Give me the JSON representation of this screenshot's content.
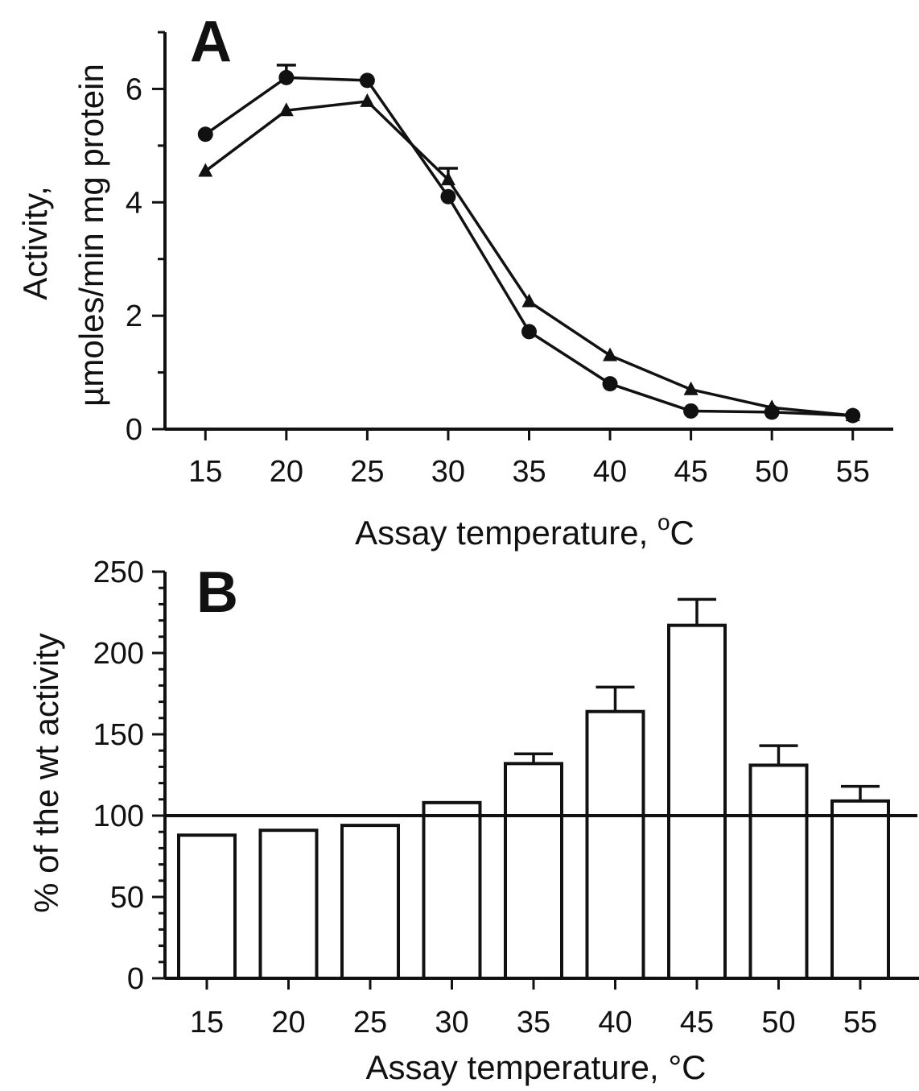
{
  "chart_data": [
    {
      "type": "line",
      "panel_label": "A",
      "xlabel": "Assay temperature, ",
      "xlabel_unit": "C",
      "xlabel_sup": "o",
      "ylabel_line1": "Activity,",
      "ylabel_line2": "µmoles/min mg protein",
      "x": [
        15,
        20,
        25,
        30,
        35,
        40,
        45,
        50,
        55
      ],
      "xlim": [
        12.5,
        57.5
      ],
      "ylim": [
        0,
        7
      ],
      "yticks": [
        0,
        2,
        4,
        6
      ],
      "series": [
        {
          "marker": "circle",
          "values": [
            5.2,
            6.2,
            6.15,
            4.1,
            1.72,
            0.8,
            0.32,
            0.3,
            0.24
          ],
          "errors": [
            0,
            0.22,
            0,
            0,
            0,
            0,
            0,
            0,
            0
          ]
        },
        {
          "marker": "triangle",
          "values": [
            4.55,
            5.62,
            5.78,
            4.4,
            2.25,
            1.3,
            0.7,
            0.38,
            0.24
          ],
          "errors": [
            0,
            0,
            0,
            0.2,
            0,
            0,
            0,
            0,
            0
          ]
        }
      ],
      "grid": false
    },
    {
      "type": "bar",
      "panel_label": "B",
      "xlabel": "Assay temperature, °C",
      "ylabel": "% of the wt activity",
      "categories": [
        "15",
        "20",
        "25",
        "30",
        "35",
        "40",
        "45",
        "50",
        "55"
      ],
      "values": [
        88,
        91,
        94,
        108,
        132,
        164,
        217,
        131,
        109
      ],
      "errors": [
        0,
        0,
        0,
        0,
        6,
        15,
        16,
        12,
        9
      ],
      "ylim": [
        0,
        250
      ],
      "yticks": [
        0,
        50,
        100,
        150,
        200,
        250
      ],
      "reference_line": 100,
      "grid": false
    }
  ]
}
